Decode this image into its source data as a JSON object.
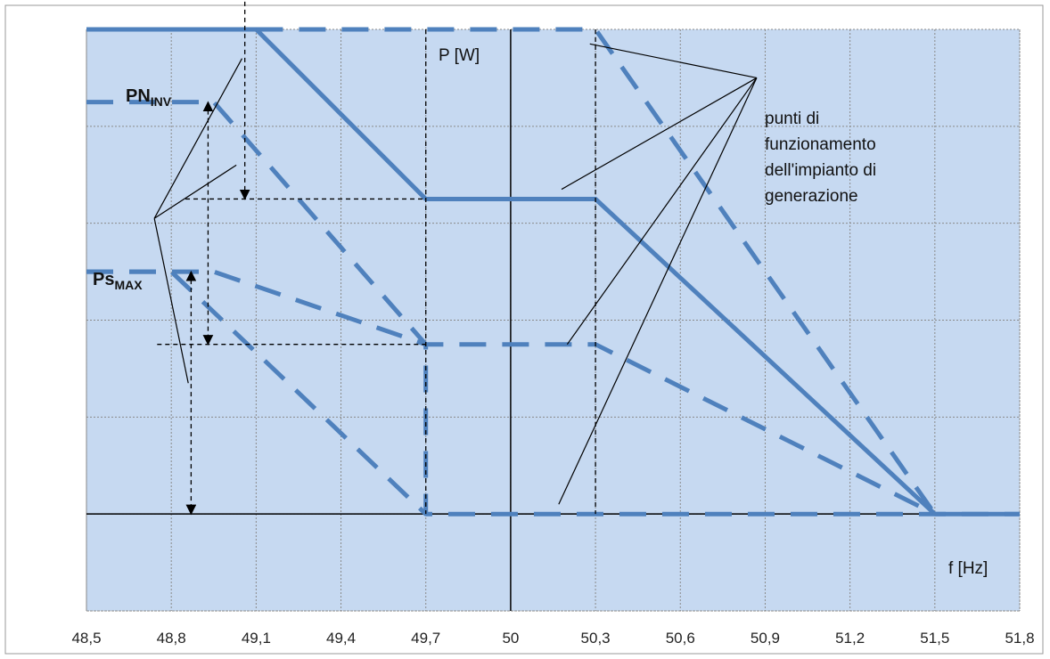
{
  "chart_data": {
    "type": "line",
    "title": "",
    "xlabel": "f [Hz]",
    "ylabel": "P [W]",
    "xlim": [
      48.5,
      51.8
    ],
    "ylim": [
      -1,
      5
    ],
    "x_ticks": [
      48.5,
      48.8,
      49.1,
      49.4,
      49.7,
      50,
      50.3,
      50.6,
      50.9,
      51.2,
      51.5,
      51.8
    ],
    "x_tick_labels": [
      "48,5",
      "48,8",
      "49,1",
      "49,4",
      "49,7",
      "50",
      "50,3",
      "50,6",
      "50,9",
      "51,2",
      "51,5",
      "51,8"
    ],
    "y_gridlines": [
      -1,
      0,
      1,
      2,
      3,
      4,
      5
    ],
    "grid": true,
    "background_color": "#c6d9f1",
    "line_color": "#4f81bd",
    "series": [
      {
        "style": "solid",
        "x": [
          48.5,
          49.1,
          49.7,
          50.3,
          51.5,
          51.8
        ],
        "y": [
          5,
          5,
          3.25,
          3.25,
          0,
          0
        ]
      },
      {
        "style": "dashed",
        "x": [
          49.1,
          50.3,
          51.5
        ],
        "y": [
          5,
          5,
          0
        ]
      },
      {
        "style": "dashed",
        "x": [
          48.5,
          48.95,
          49.7,
          49.7,
          51.8
        ],
        "y": [
          4.25,
          4.25,
          1.75,
          0,
          0
        ]
      },
      {
        "style": "dashed",
        "x": [
          48.5,
          48.95,
          49.7,
          50.3,
          51.5
        ],
        "y": [
          2.5,
          2.5,
          1.75,
          1.75,
          0
        ]
      },
      {
        "style": "dashed",
        "x": [
          48.5,
          48.8,
          49.7,
          49.7
        ],
        "y": [
          2.5,
          2.5,
          0,
          0
        ]
      }
    ],
    "annotations": {
      "pn_label": {
        "main": "PN",
        "sub": "INV"
      },
      "ps_label": {
        "main": "Ps",
        "sub": "MAX"
      },
      "note_lines": [
        "punti di",
        "funzionamento",
        "dell'impianto di",
        "generazione"
      ]
    }
  }
}
